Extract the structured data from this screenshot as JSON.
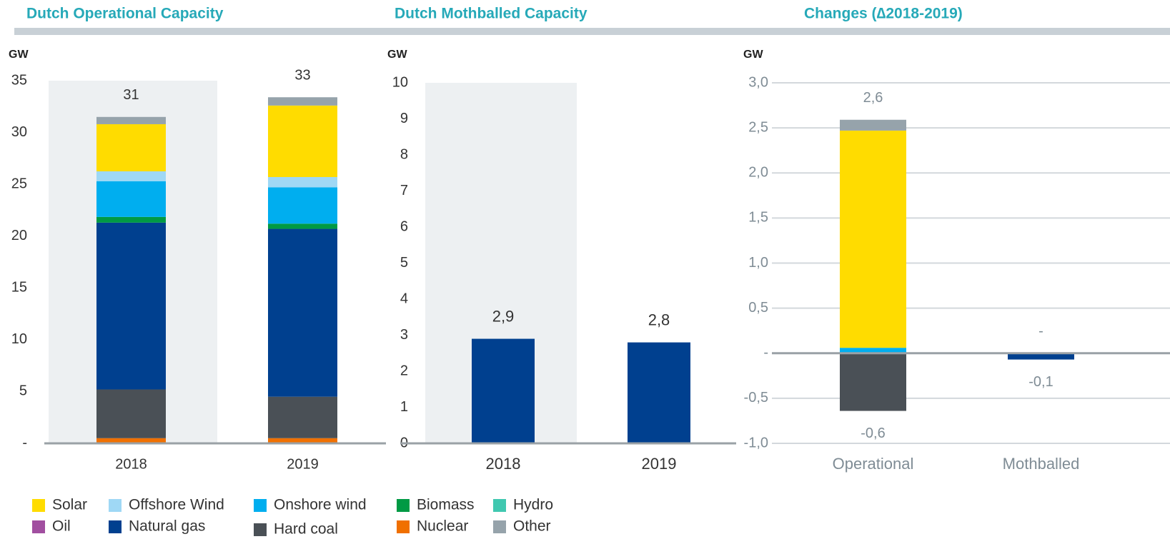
{
  "chart_data": [
    {
      "type": "bar",
      "stacked": true,
      "title": "Dutch Operational Capacity",
      "ylabel": "GW",
      "categories": [
        "2018",
        "2019"
      ],
      "series": [
        {
          "name": "Solar",
          "color": "#ffdc00",
          "values": [
            4.55,
            6.9
          ]
        },
        {
          "name": "Offshore Wind",
          "color": "#9fd8f5",
          "values": [
            0.95,
            1.0
          ]
        },
        {
          "name": "Onshore wind",
          "color": "#00aeef",
          "values": [
            3.45,
            3.5
          ]
        },
        {
          "name": "Biomass",
          "color": "#009a44",
          "values": [
            0.55,
            0.5
          ]
        },
        {
          "name": "Hydro",
          "color": "#40c8b0",
          "values": [
            0,
            0
          ]
        },
        {
          "name": "Oil",
          "color": "#a14fa0",
          "values": [
            0,
            0
          ]
        },
        {
          "name": "Natural gas",
          "color": "#00408f",
          "values": [
            16.1,
            16.2
          ]
        },
        {
          "name": "Hard coal",
          "color": "#4a5056",
          "values": [
            4.7,
            4.0
          ]
        },
        {
          "name": "Nuclear",
          "color": "#f07000",
          "values": [
            0.5,
            0.5
          ]
        },
        {
          "name": "Other",
          "color": "#96a3ab",
          "values": [
            0.7,
            0.8
          ]
        }
      ],
      "totals": [
        31,
        33
      ],
      "ylim": [
        0,
        35
      ],
      "yticks": [
        {
          "value": 0,
          "label": "-"
        },
        5,
        10,
        15,
        20,
        25,
        30,
        35
      ],
      "grid": false
    },
    {
      "type": "bar",
      "title": "Dutch Mothballed Capacity",
      "ylabel": "GW",
      "categories": [
        "2018",
        "2019"
      ],
      "values": [
        2.9,
        2.8
      ],
      "value_labels": [
        "2,9",
        "2,8"
      ],
      "color": "#00408f",
      "ylim": [
        0,
        10
      ],
      "yticks": [
        0,
        1,
        2,
        3,
        4,
        5,
        6,
        7,
        8,
        9,
        10
      ],
      "grid": false
    },
    {
      "type": "bar",
      "stacked": true,
      "title": "Changes (∆2018-2019)",
      "ylabel": "GW",
      "categories": [
        "Operational",
        "Mothballed"
      ],
      "series": [
        {
          "name": "Onshore wind",
          "color": "#00aeef",
          "values": [
            0.06,
            0
          ]
        },
        {
          "name": "Solar",
          "color": "#ffdc00",
          "values": [
            2.41,
            0
          ]
        },
        {
          "name": "Other",
          "color": "#96a3ab",
          "values": [
            0.12,
            0
          ]
        },
        {
          "name": "Hard coal",
          "color": "#4a5056",
          "values": [
            -0.64,
            0
          ]
        },
        {
          "name": "Natural gas",
          "color": "#00408f",
          "values": [
            0,
            -0.07
          ]
        }
      ],
      "totals": [
        2.6,
        0
      ],
      "totals_labels": [
        "2,6",
        "-"
      ],
      "negative_totals": [
        -0.6,
        -0.1
      ],
      "negative_totals_labels": [
        "-0,6",
        "-0,1"
      ],
      "ylim": [
        -1,
        3
      ],
      "yticks": [
        {
          "value": -1,
          "label": "-1,0"
        },
        {
          "value": -0.5,
          "label": "-0,5"
        },
        {
          "value": 0,
          "label": "-"
        },
        {
          "value": 0.5,
          "label": "0,5"
        },
        {
          "value": 1,
          "label": "1,0"
        },
        {
          "value": 1.5,
          "label": "1,5"
        },
        {
          "value": 2,
          "label": "2,0"
        },
        {
          "value": 2.5,
          "label": "2,5"
        },
        {
          "value": 3,
          "label": "3,0"
        }
      ],
      "grid": true
    }
  ]
}
